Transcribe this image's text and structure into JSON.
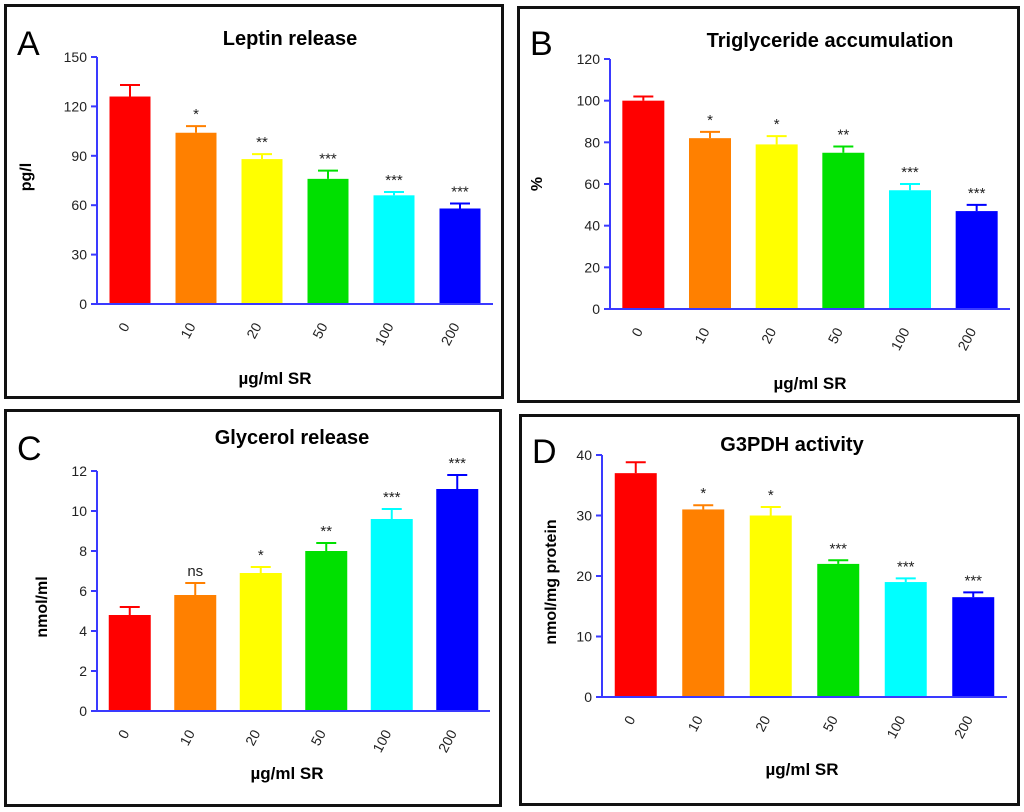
{
  "colors": [
    "#ff0000",
    "#ff8000",
    "#ffff00",
    "#00e000",
    "#00ffff",
    "#0000ff"
  ],
  "axis_color": "#3a3aff",
  "chart_data": [
    {
      "type": "bar",
      "panel_letter": "A",
      "title": "Leptin release",
      "xlabel": "µg/ml SR",
      "ylabel": "pg/l",
      "categories": [
        "0",
        "10",
        "20",
        "50",
        "100",
        "200"
      ],
      "values": [
        126,
        104,
        88,
        76,
        66,
        58
      ],
      "errors": [
        7,
        4,
        3,
        5,
        2,
        3
      ],
      "significance": [
        "",
        "*",
        "**",
        "***",
        "***",
        "***"
      ],
      "ylim": [
        0,
        150
      ],
      "yticks": [
        "0",
        "30",
        "60",
        "90",
        "120",
        "150"
      ]
    },
    {
      "type": "bar",
      "panel_letter": "B",
      "title": "Triglyceride accumulation",
      "xlabel": "µg/ml SR",
      "ylabel": "%",
      "categories": [
        "0",
        "10",
        "20",
        "50",
        "100",
        "200"
      ],
      "values": [
        100,
        82,
        79,
        75,
        57,
        47
      ],
      "errors": [
        2,
        3,
        4,
        3,
        3,
        3
      ],
      "significance": [
        "",
        "*",
        "*",
        "**",
        "***",
        "***"
      ],
      "ylim": [
        0,
        120
      ],
      "yticks": [
        "0",
        "20",
        "40",
        "60",
        "80",
        "100",
        "120"
      ]
    },
    {
      "type": "bar",
      "panel_letter": "C",
      "title": "Glycerol release",
      "xlabel": "µg/ml SR",
      "ylabel": "nmol/ml",
      "categories": [
        "0",
        "10",
        "20",
        "50",
        "100",
        "200"
      ],
      "values": [
        4.8,
        5.8,
        6.9,
        8.0,
        9.6,
        11.1
      ],
      "errors": [
        0.4,
        0.6,
        0.3,
        0.4,
        0.5,
        0.7
      ],
      "significance": [
        "",
        "ns",
        "*",
        "**",
        "***",
        "***"
      ],
      "ylim": [
        0,
        12
      ],
      "yticks": [
        "0",
        "2",
        "4",
        "6",
        "8",
        "10",
        "12"
      ]
    },
    {
      "type": "bar",
      "panel_letter": "D",
      "title": "G3PDH activity",
      "xlabel": "µg/ml SR",
      "ylabel": "nmol/mg protein",
      "categories": [
        "0",
        "10",
        "20",
        "50",
        "100",
        "200"
      ],
      "values": [
        37,
        31,
        30,
        22,
        19,
        16.5
      ],
      "errors": [
        1.8,
        0.7,
        1.4,
        0.6,
        0.6,
        0.8
      ],
      "significance": [
        "",
        "*",
        "*",
        "***",
        "***",
        "***"
      ],
      "ylim": [
        0,
        40
      ],
      "yticks": [
        "0",
        "10",
        "20",
        "30",
        "40"
      ]
    }
  ]
}
